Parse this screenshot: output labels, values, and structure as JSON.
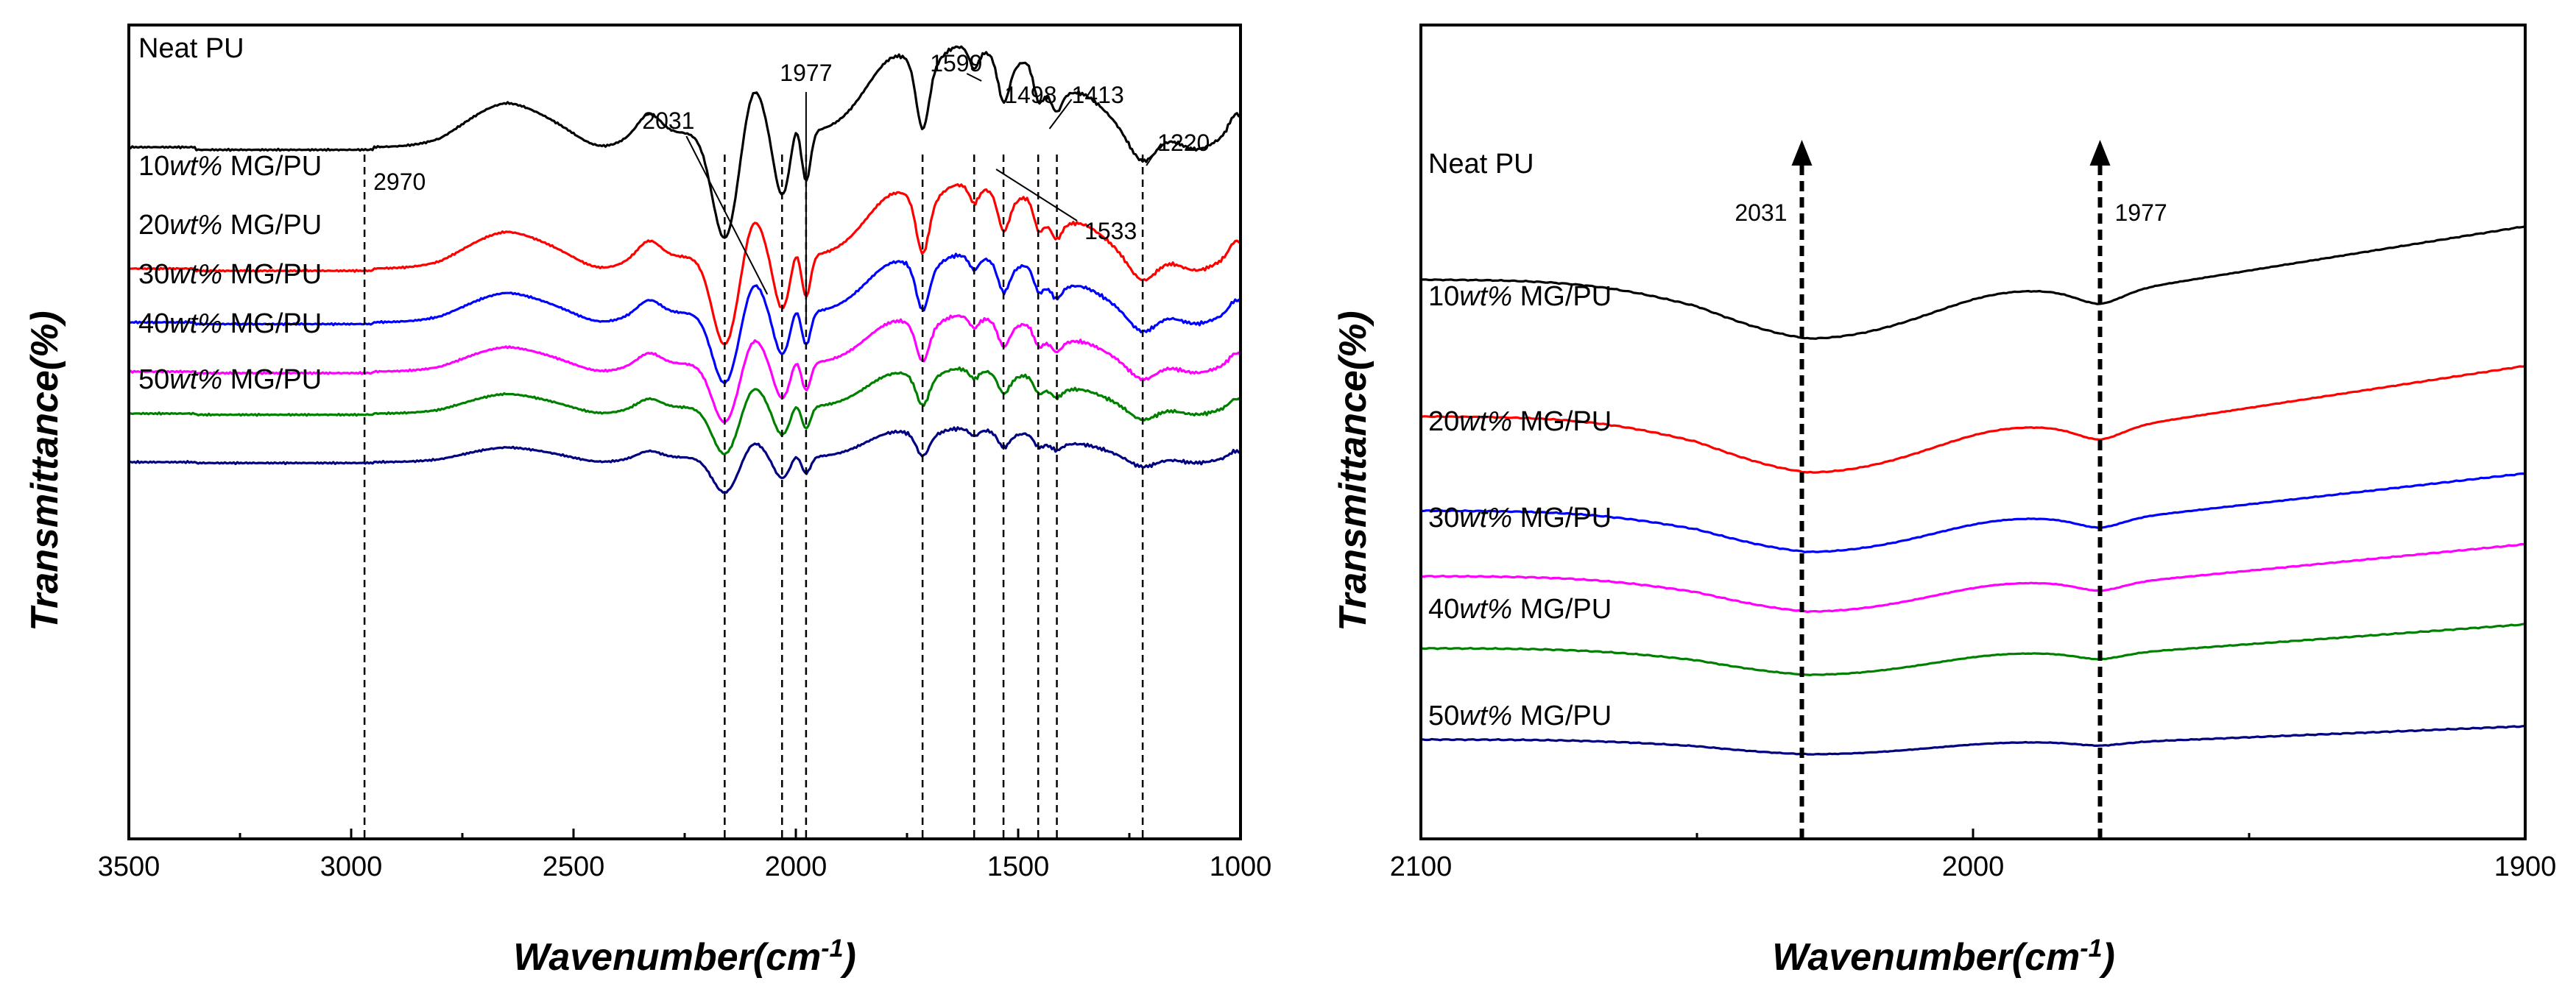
{
  "chart_data": [
    {
      "type": "line",
      "panel": "left",
      "title": "",
      "xlabel": "Wavenumber(cm",
      "xlabel_sup": "-1",
      "xlabel_close": ")",
      "ylabel": "Transmittance(%)",
      "xlim": [
        3500,
        1000
      ],
      "x_ticks": [
        3500,
        3000,
        2500,
        2000,
        1500,
        1000
      ],
      "x_tick_labels": [
        "3500",
        "3000",
        "2500",
        "2000",
        "1500",
        "1000"
      ],
      "series": [
        {
          "name": "Neat PU",
          "prefix": "Neat PU",
          "italic": "",
          "suffix": "",
          "color": "#000000",
          "offset": 5
        },
        {
          "name": "10wt% MG/PU",
          "prefix": "10",
          "italic": "wt%",
          "suffix": " MG/PU",
          "color": "#ff0000",
          "offset": 4
        },
        {
          "name": "20wt% MG/PU",
          "prefix": "20",
          "italic": "wt%",
          "suffix": " MG/PU",
          "color": "#0000ff",
          "offset": 3
        },
        {
          "name": "30wt% MG/PU",
          "prefix": "30",
          "italic": "wt%",
          "suffix": " MG/PU",
          "color": "#ff00ff",
          "offset": 2
        },
        {
          "name": "40wt% MG/PU",
          "prefix": "40",
          "italic": "wt%",
          "suffix": " MG/PU",
          "color": "#008000",
          "offset": 1
        },
        {
          "name": "50wt% MG/PU",
          "prefix": "50",
          "italic": "wt%",
          "suffix": " MG/PU",
          "color": "#000080",
          "offset": 0
        }
      ],
      "peak_markers": [
        2970,
        2160,
        2031,
        1977,
        1715,
        1599,
        1533,
        1455,
        1413,
        1220
      ],
      "annotations": [
        {
          "label": "2970",
          "x": 2970
        },
        {
          "label": "2031",
          "x": 2031
        },
        {
          "label": "1977",
          "x": 1977
        },
        {
          "label": "1599",
          "x": 1599
        },
        {
          "label": "1498",
          "x": 1498
        },
        {
          "label": "1413",
          "x": 1413
        },
        {
          "label": "1220",
          "x": 1220
        },
        {
          "label": "1533",
          "x": 1533
        }
      ]
    },
    {
      "type": "line",
      "panel": "right",
      "title": "",
      "xlabel": "Wavenumber(cm",
      "xlabel_sup": "-1",
      "xlabel_close": ")",
      "ylabel": "Transmittance(%)",
      "xlim": [
        2100,
        1900
      ],
      "x_ticks": [
        2100,
        2000,
        1900
      ],
      "x_tick_labels": [
        "2100",
        "2000",
        "1900"
      ],
      "series": [
        {
          "name": "Neat PU",
          "prefix": "Neat PU",
          "italic": "",
          "suffix": "",
          "color": "#000000",
          "offset": 5
        },
        {
          "name": "10wt% MG/PU",
          "prefix": "10",
          "italic": "wt%",
          "suffix": " MG/PU",
          "color": "#ff0000",
          "offset": 4
        },
        {
          "name": "20wt% MG/PU",
          "prefix": "20",
          "italic": "wt%",
          "suffix": " MG/PU",
          "color": "#0000ff",
          "offset": 3
        },
        {
          "name": "30wt% MG/PU",
          "prefix": "30",
          "italic": "wt%",
          "suffix": " MG/PU",
          "color": "#ff00ff",
          "offset": 2
        },
        {
          "name": "40wt% MG/PU",
          "prefix": "40",
          "italic": "wt%",
          "suffix": " MG/PU",
          "color": "#008000",
          "offset": 1
        },
        {
          "name": "50wt% MG/PU",
          "prefix": "50",
          "italic": "wt%",
          "suffix": " MG/PU",
          "color": "#000080",
          "offset": 0
        }
      ],
      "annotations": [
        {
          "label": "2031",
          "x": 2031
        },
        {
          "label": "1977",
          "x": 1977
        }
      ]
    }
  ]
}
